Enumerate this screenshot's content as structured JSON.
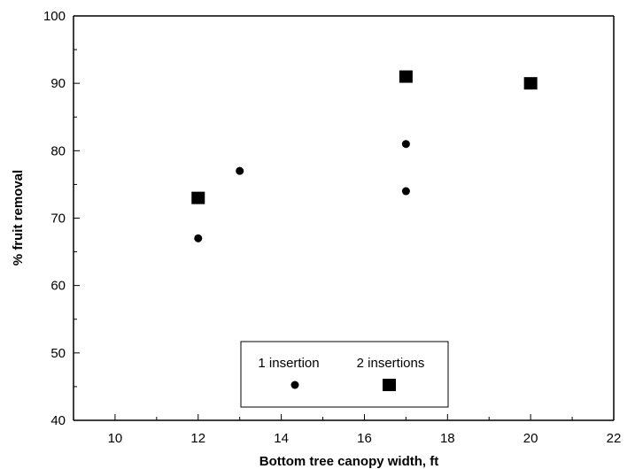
{
  "chart_data": {
    "type": "scatter",
    "title": "",
    "xlabel": "Bottom tree canopy width, ft",
    "ylabel": "% fruit removal",
    "xlim": [
      9,
      22
    ],
    "ylim": [
      40,
      100
    ],
    "xticks": [
      "10",
      "12",
      "14",
      "16",
      "18",
      "20",
      "22"
    ],
    "yticks": [
      "40",
      "50",
      "60",
      "70",
      "80",
      "90",
      "100"
    ],
    "grid": false,
    "legend": {
      "placement": "bottom-center",
      "entries": [
        "1 insertion",
        "2 insertions"
      ]
    },
    "series": [
      {
        "name": "1 insertion",
        "marker": "circle",
        "color": "#000000",
        "points": [
          [
            12,
            67
          ],
          [
            13,
            77
          ],
          [
            17,
            81
          ],
          [
            17,
            74
          ]
        ]
      },
      {
        "name": "2 insertions",
        "marker": "square",
        "color": "#000000",
        "points": [
          [
            12,
            73
          ],
          [
            17,
            91
          ],
          [
            20,
            90
          ]
        ]
      }
    ]
  }
}
